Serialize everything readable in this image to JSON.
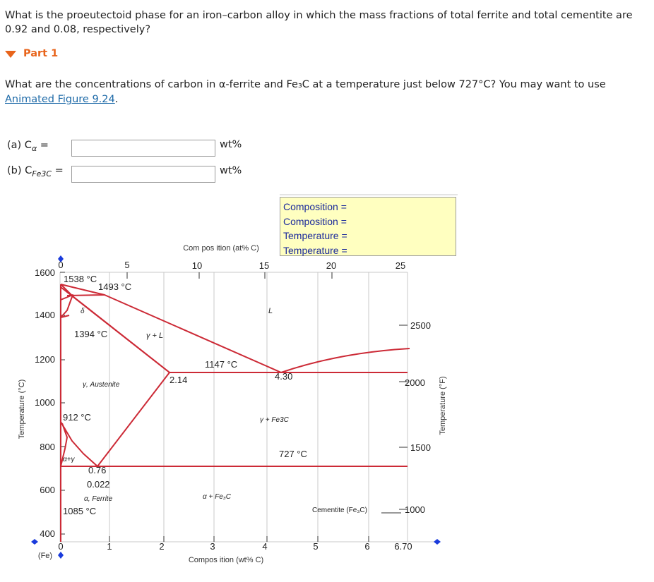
{
  "question": "What is the proeutectoid phase for an iron–carbon alloy in which the mass fractions of total ferrite and total cementite are 0.92 and 0.08, respectively?",
  "part": {
    "label": "Part 1"
  },
  "subquestion": {
    "text": "What are the concentrations of carbon in α-ferrite and Fe₃C at a temperature just below 727°C? You may want to use ",
    "link_text": "Animated Figure 9.24",
    "after": "."
  },
  "fields": [
    {
      "label_prefix": "(a) C",
      "label_sub": "α",
      "label_suffix": " =",
      "value": "",
      "unit": "wt%"
    },
    {
      "label_prefix": "(b) C",
      "label_sub": "Fe3C",
      "label_suffix": " =",
      "value": "",
      "unit": "wt%"
    }
  ],
  "readout": {
    "lines": [
      "Composition =",
      "Composition =",
      "Temperature =",
      "Temperature ="
    ]
  },
  "diagram": {
    "top_axis_title": "Com pos ition (at% C)",
    "top_ticks": [
      "0",
      "5",
      "10",
      "15",
      "20",
      "25"
    ],
    "bottom_axis_title": "Compos ition (wt% C)",
    "bottom_ticks": [
      "0",
      "1",
      "2",
      "3",
      "4",
      "5",
      "6",
      "6.70"
    ],
    "left_axis_title": "Temperature (°C)",
    "left_ticks": [
      "1600",
      "1400",
      "1200",
      "1000",
      "800",
      "600",
      "400"
    ],
    "right_axis_title": "Temperature (°F)",
    "right_ticks": [
      "2500",
      "2000",
      "1500",
      "1000"
    ],
    "fe_label": "(Fe)",
    "annotations": {
      "t1538": "1538 °C",
      "t1493": "1493 °C",
      "t1394": "1394 °C",
      "t1147": "1147 °C",
      "t912": "912 °C",
      "t727": "727 °C",
      "t1085": "1085 °C",
      "c214": "2.14",
      "c430": "4.30",
      "c076": "0.76",
      "c0022": "0.022",
      "delta": "δ",
      "L": "L",
      "gammaL": "γ + L",
      "austenite": "γ, Austenite",
      "gammaFe3C": "γ + Fe3C",
      "alphagamma": "α+γ",
      "ferrite": "α, Ferrite",
      "alphaFe3C": "α + Fe₃C",
      "cementite": "Cementite (Fe₃C)"
    },
    "colors": {
      "phase_lines": "#cc2a36",
      "grid": "#c8c8c8",
      "markers": "#1a3bdc"
    }
  }
}
